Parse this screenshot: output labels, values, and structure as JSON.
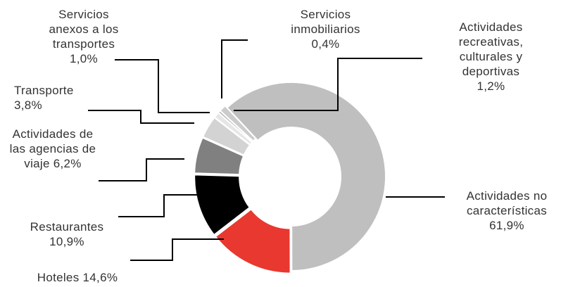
{
  "chart_data": {
    "type": "donut",
    "categories": [
      "Actividades no características",
      "Hoteles",
      "Restaurantes",
      "Actividades de las agencias de viaje",
      "Transporte",
      "Servicios anexos a los transportes",
      "Servicios inmobiliarios",
      "Actividades recreativas, culturales y deportivas"
    ],
    "values": [
      61.9,
      14.6,
      10.9,
      6.2,
      3.8,
      1.0,
      0.4,
      1.2
    ],
    "value_labels": [
      "61,9%",
      "14,6%",
      "10,9%",
      "6,2%",
      "3,8%",
      "1,0%",
      "0,4%",
      "1,2%"
    ],
    "colors": [
      "#bfbfbf",
      "#e8382f",
      "#000000",
      "#808080",
      "#d3d3d3",
      "#e6e6e6",
      "#a6a6a6",
      "#cccccc"
    ]
  }
}
